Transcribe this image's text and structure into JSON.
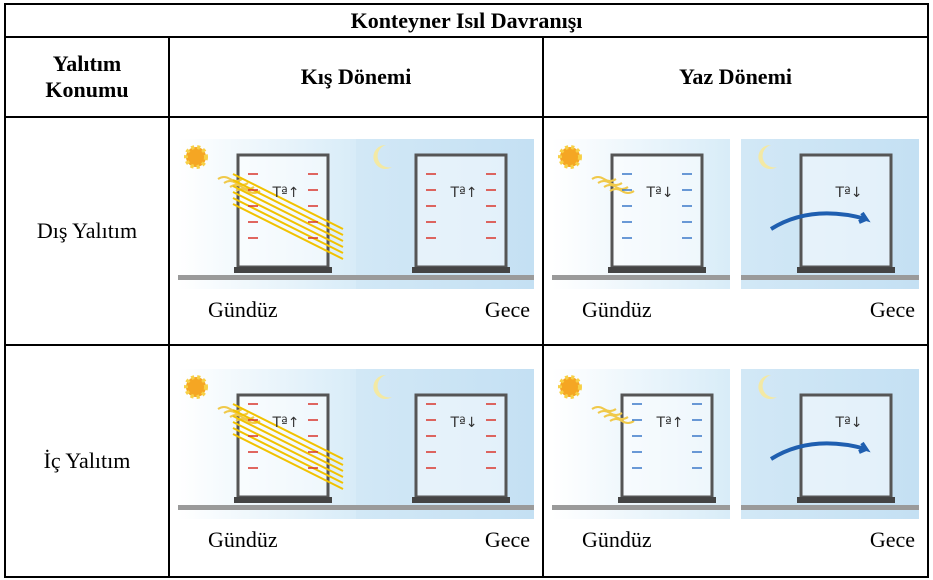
{
  "title": "Konteyner Isıl Davranışı",
  "header": [
    "Yalıtım Konumu",
    "Kış Dönemi",
    "Yaz Dönemi"
  ],
  "rows": [
    {
      "label": "Dış Yalıtım",
      "cells": [
        {
          "day": "Gündüz",
          "night": "Gece",
          "day_temp": "Tª↑",
          "night_temp": "Tª↑"
        },
        {
          "day": "Gündüz",
          "night": "Gece",
          "day_temp": "Tª↓",
          "night_temp": "Tª↓"
        }
      ]
    },
    {
      "label": "İç Yalıtım",
      "cells": [
        {
          "day": "Gündüz",
          "night": "Gece",
          "day_temp": "Tª↑",
          "night_temp": "Tª↓"
        },
        {
          "day": "Gündüz",
          "night": "Gece",
          "day_temp": "Tª↑",
          "night_temp": "Tª↓"
        }
      ]
    }
  ]
}
